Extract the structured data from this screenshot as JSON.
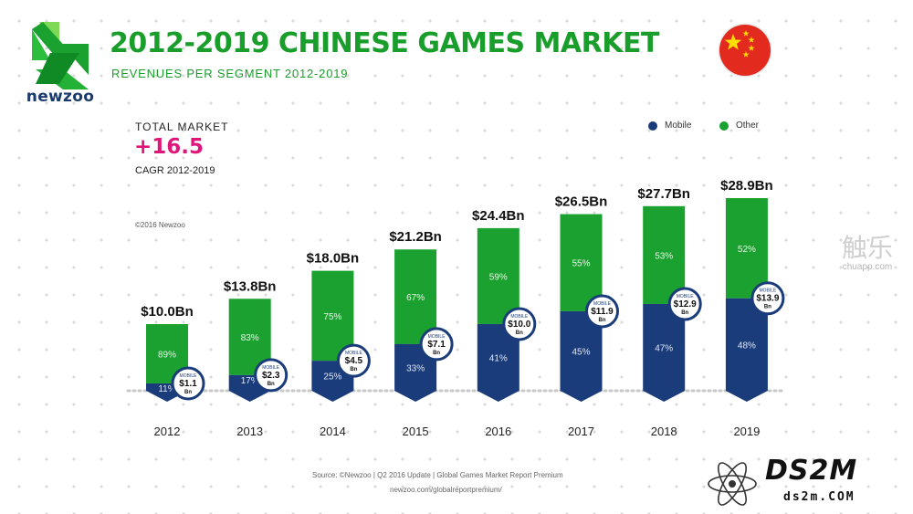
{
  "brand": {
    "name": "newzoo",
    "logo_icon": "newzoo-logo-icon",
    "flag_icon": "china-flag-icon"
  },
  "header": {
    "title": "2012-2019 CHINESE GAMES MARKET",
    "subtitle": "REVENUES PER SEGMENT 2012-2019"
  },
  "total_market": {
    "label": "TOTAL MARKET",
    "value": "+16.5",
    "cagr_label": "CAGR 2012-2019"
  },
  "copyright": "©2016 Newzoo",
  "legend": [
    {
      "label": "Mobile",
      "color": "#1b3c7a"
    },
    {
      "label": "Other",
      "color": "#1aa12f"
    }
  ],
  "colors": {
    "mobile": "#1b3c7a",
    "other": "#1aa12f",
    "accent": "#e0157a",
    "title": "#1a9e2b"
  },
  "chart_data": {
    "type": "bar",
    "stacked": true,
    "title": "2012-2019 CHINESE GAMES MARKET",
    "subtitle": "REVENUES PER SEGMENT 2012-2019",
    "categories": [
      "2012",
      "2013",
      "2014",
      "2015",
      "2016",
      "2017",
      "2018",
      "2019"
    ],
    "totals": [
      10.0,
      13.8,
      18.0,
      21.2,
      24.4,
      26.5,
      27.7,
      28.9
    ],
    "total_labels": [
      "$10.0Bn",
      "$13.8Bn",
      "$18.0Bn",
      "$21.2Bn",
      "$24.4Bn",
      "$26.5Bn",
      "$27.7Bn",
      "$28.9Bn"
    ],
    "series": [
      {
        "name": "Mobile",
        "percent": [
          11,
          17,
          25,
          33,
          41,
          45,
          47,
          48
        ],
        "percent_labels": [
          "11%",
          "17%",
          "25%",
          "33%",
          "41%",
          "45%",
          "47%",
          "48%"
        ],
        "values": [
          1.1,
          2.3,
          4.5,
          7.1,
          10.0,
          11.9,
          12.9,
          13.9
        ],
        "badge_labels": [
          "$1.1",
          "$2.3",
          "$4.5",
          "$7.1",
          "$10.0",
          "$11.9",
          "$12.9",
          "$13.9"
        ]
      },
      {
        "name": "Other",
        "percent": [
          89,
          83,
          75,
          67,
          59,
          55,
          53,
          52
        ],
        "percent_labels": [
          "89%",
          "83%",
          "75%",
          "67%",
          "59%",
          "55%",
          "53%",
          "52%"
        ]
      }
    ],
    "badge_top": "MOBILE",
    "badge_bottom": "Bn",
    "legend_position": "top-right",
    "grid": false
  },
  "source": {
    "line1": "Source: ©Newzoo | Q2 2016 Update | Global Games Market Report Premium",
    "line2": "newzoo.com/globalreportpremium/"
  },
  "watermarks": {
    "chuapp_cn": "触乐",
    "chuapp_url": "chuapp.com",
    "ds2m": "DS2M",
    "ds2m_url": "ds2m.COM"
  }
}
